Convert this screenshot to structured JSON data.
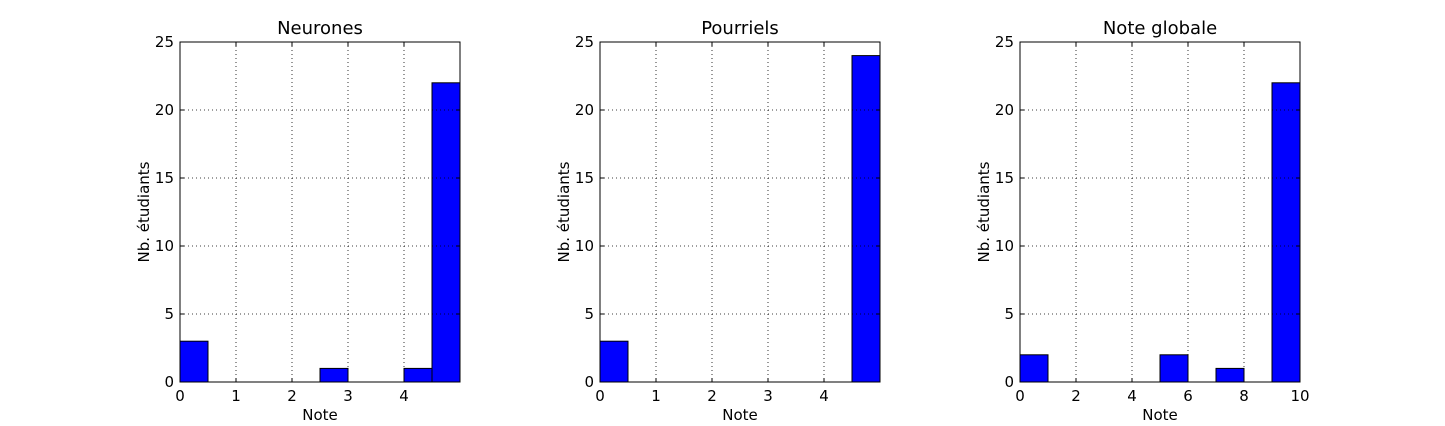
{
  "chart_data": [
    {
      "type": "bar",
      "title": "Neurones",
      "xlabel": "Note",
      "ylabel": "Nb. étudiants",
      "xlim": [
        0,
        5
      ],
      "ylim": [
        0,
        25
      ],
      "xticks": [
        0,
        1,
        2,
        3,
        4
      ],
      "yticks": [
        0,
        5,
        10,
        15,
        20,
        25
      ],
      "grid": true,
      "bin_edges": [
        0,
        0.5,
        1,
        1.5,
        2,
        2.5,
        3,
        3.5,
        4,
        4.5,
        5
      ],
      "values": [
        3,
        0,
        0,
        0,
        0,
        1,
        0,
        0,
        1,
        22
      ],
      "bar_color": "#0000ff"
    },
    {
      "type": "bar",
      "title": "Pourriels",
      "xlabel": "Note",
      "ylabel": "Nb. étudiants",
      "xlim": [
        0,
        5
      ],
      "ylim": [
        0,
        25
      ],
      "xticks": [
        0,
        1,
        2,
        3,
        4
      ],
      "yticks": [
        0,
        5,
        10,
        15,
        20,
        25
      ],
      "grid": true,
      "bin_edges": [
        0,
        0.5,
        1,
        1.5,
        2,
        2.5,
        3,
        3.5,
        4,
        4.5,
        5
      ],
      "values": [
        3,
        0,
        0,
        0,
        0,
        0,
        0,
        0,
        0,
        24
      ],
      "bar_color": "#0000ff"
    },
    {
      "type": "bar",
      "title": "Note globale",
      "xlabel": "Note",
      "ylabel": "Nb. étudiants",
      "xlim": [
        0,
        10
      ],
      "ylim": [
        0,
        25
      ],
      "xticks": [
        0,
        2,
        4,
        6,
        8,
        10
      ],
      "yticks": [
        0,
        5,
        10,
        15,
        20,
        25
      ],
      "grid": true,
      "bin_edges": [
        0,
        1,
        2,
        3,
        4,
        5,
        6,
        7,
        8,
        9,
        10
      ],
      "values": [
        2,
        0,
        0,
        0,
        0,
        2,
        0,
        1,
        0,
        22
      ],
      "bar_color": "#0000ff"
    }
  ]
}
